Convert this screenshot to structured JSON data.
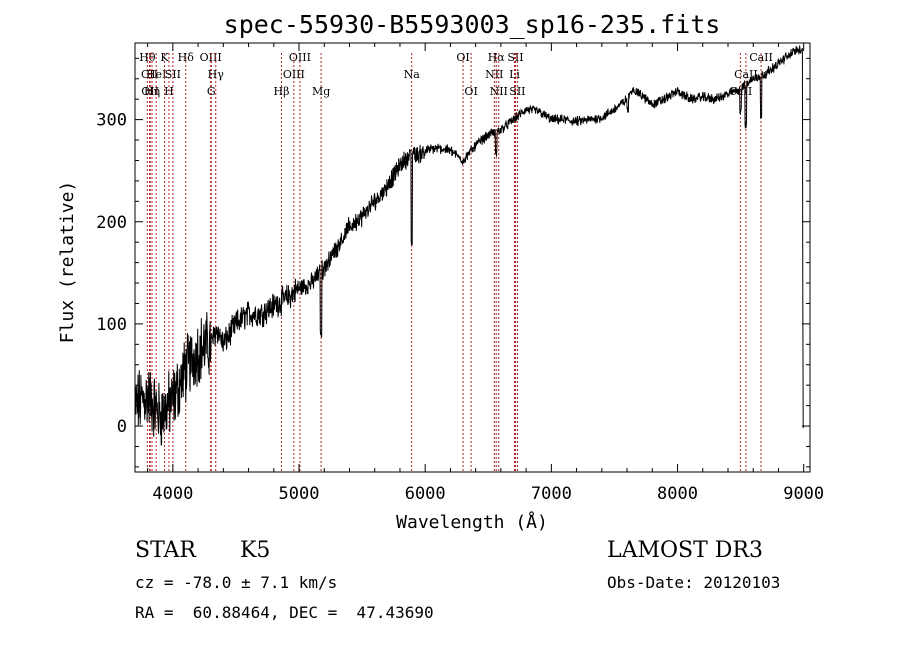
{
  "chart_data": {
    "type": "line",
    "title": "spec-55930-B5593003_sp16-235.fits",
    "xlabel": "Wavelength (Å)",
    "ylabel": "Flux (relative)",
    "xlim": [
      3700,
      9050
    ],
    "ylim": [
      -45,
      375
    ],
    "xticks": [
      4000,
      5000,
      6000,
      7000,
      8000,
      9000
    ],
    "yticks": [
      0,
      100,
      200,
      300
    ],
    "grid": false,
    "line_color": "#000000",
    "marker_color": "#b22222",
    "spectrum_anchors": {
      "x": [
        3700,
        3800,
        3900,
        4000,
        4100,
        4200,
        4300,
        4350,
        4400,
        4500,
        4600,
        4700,
        4800,
        4900,
        5000,
        5100,
        5200,
        5300,
        5400,
        5500,
        5600,
        5700,
        5800,
        5900,
        5950,
        6000,
        6100,
        6200,
        6300,
        6400,
        6500,
        6600,
        6700,
        6800,
        6900,
        7000,
        7100,
        7200,
        7300,
        7400,
        7500,
        7600,
        7650,
        7700,
        7800,
        7900,
        8000,
        8100,
        8200,
        8300,
        8400,
        8500,
        8600,
        8700,
        8800,
        8900,
        8990,
        9000
      ],
      "y": [
        20,
        30,
        10,
        25,
        55,
        75,
        80,
        95,
        80,
        100,
        110,
        110,
        118,
        125,
        135,
        140,
        155,
        175,
        195,
        205,
        220,
        235,
        255,
        268,
        265,
        270,
        272,
        270,
        260,
        275,
        285,
        290,
        300,
        310,
        308,
        300,
        300,
        298,
        300,
        302,
        310,
        320,
        330,
        325,
        315,
        320,
        328,
        320,
        322,
        320,
        325,
        330,
        340,
        345,
        355,
        365,
        370,
        130
      ]
    },
    "spectrum_dips": [
      {
        "x": 5893,
        "y": 175
      },
      {
        "x": 6563,
        "y": 262
      },
      {
        "x": 8500,
        "y": 305
      },
      {
        "x": 8542,
        "y": 290
      },
      {
        "x": 8662,
        "y": 300
      },
      {
        "x": 5175,
        "y": 85
      },
      {
        "x": 7605,
        "y": 305
      },
      {
        "x": 8990,
        "y": -2
      }
    ],
    "line_markers": [
      {
        "label": "Hθ",
        "x": 3798,
        "row": 0
      },
      {
        "label": "CII",
        "x": 3815,
        "row": 1
      },
      {
        "label": "OII",
        "x": 3820,
        "row": 2
      },
      {
        "label": "Hη",
        "x": 3835,
        "row": 2
      },
      {
        "label": "HeI",
        "x": 3868,
        "row": 1
      },
      {
        "label": "K",
        "x": 3934,
        "row": 0
      },
      {
        "label": "H",
        "x": 3969,
        "row": 2
      },
      {
        "label": "SII",
        "x": 4000,
        "row": 1
      },
      {
        "label": "Hδ",
        "x": 4102,
        "row": 0
      },
      {
        "label": "OIII",
        "x": 4300,
        "row": 0
      },
      {
        "label": "G",
        "x": 4305,
        "row": 2
      },
      {
        "label": "Hγ",
        "x": 4340,
        "row": 1
      },
      {
        "label": "Hβ",
        "x": 4861,
        "row": 2
      },
      {
        "label": "OIII",
        "x": 4959,
        "row": 1
      },
      {
        "label": "OIII",
        "x": 5007,
        "row": 0
      },
      {
        "label": "Mg",
        "x": 5175,
        "row": 2
      },
      {
        "label": "Na",
        "x": 5893,
        "row": 1
      },
      {
        "label": "OI",
        "x": 6300,
        "row": 0
      },
      {
        "label": "OI",
        "x": 6364,
        "row": 2
      },
      {
        "label": "NII",
        "x": 6548,
        "row": 1
      },
      {
        "label": "Hα",
        "x": 6563,
        "row": 0
      },
      {
        "label": "NII",
        "x": 6583,
        "row": 2
      },
      {
        "label": "Li",
        "x": 6708,
        "row": 1
      },
      {
        "label": "SII",
        "x": 6716,
        "row": 0
      },
      {
        "label": "SII",
        "x": 6731,
        "row": 2
      },
      {
        "label": "CaII",
        "x": 8498,
        "row": 2
      },
      {
        "label": "CaII",
        "x": 8542,
        "row": 1
      },
      {
        "label": "CaII",
        "x": 8662,
        "row": 0
      }
    ]
  },
  "info": {
    "class": "STAR",
    "subclass": "K5",
    "survey": "LAMOST DR3",
    "cz": "cz = -78.0 ± 7.1 km/s",
    "obs_date": "Obs-Date: 20120103",
    "coords": "RA =  60.88464, DEC =  47.43690"
  }
}
